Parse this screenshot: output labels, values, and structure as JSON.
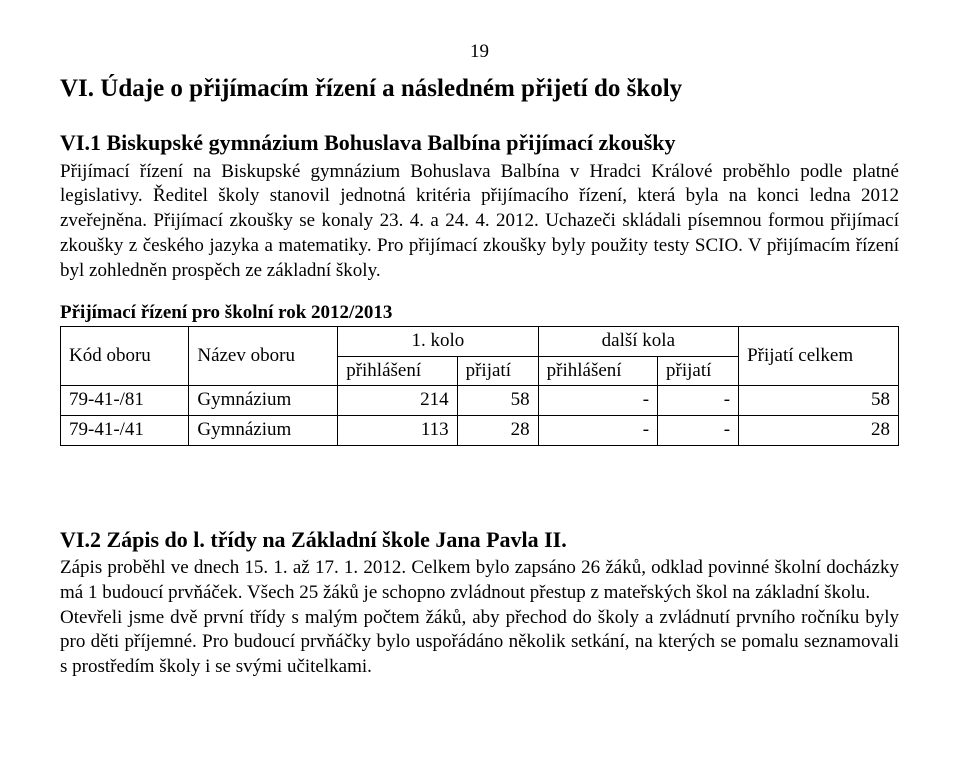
{
  "page_number": "19",
  "h1": "VI. Údaje o přijímacím řízení a následném přijetí do školy",
  "section1": {
    "heading": "VI.1 Biskupské gymnázium Bohuslava Balbína přijímací zkoušky",
    "para": "Přijímací řízení na Biskupské gymnázium Bohuslava Balbína v Hradci Králové proběhlo podle platné legislativy. Ředitel školy stanovil jednotná kritéria přijímacího řízení, která byla na konci ledna 2012 zveřejněna. Přijímací zkoušky se konaly 23. 4. a 24. 4. 2012. Uchazeči skládali písemnou formou přijímací zkoušky z českého jazyka a matematiky. Pro přijímací zkoušky byly použity testy SCIO. V přijímacím řízení byl zohledněn prospěch ze základní školy.",
    "table_caption": "Přijímací řízení pro školní rok 2012/2013",
    "table": {
      "header": {
        "kod": "Kód oboru",
        "nazev": "Název oboru",
        "kolo1": "1. kolo",
        "dalsi": "další kola",
        "prijati": "Přijatí celkem",
        "prihlaseni": "přihlášení",
        "prijati_sub": "přijatí"
      },
      "rows": [
        {
          "kod": "79-41-/81",
          "nazev": "Gymnázium",
          "k1_prih": "214",
          "k1_prij": "58",
          "dk_prih": "-",
          "dk_prij": "-",
          "celkem": "58"
        },
        {
          "kod": "79-41-/41",
          "nazev": "Gymnázium",
          "k1_prih": "113",
          "k1_prij": "28",
          "dk_prih": "-",
          "dk_prij": "-",
          "celkem": "28"
        }
      ]
    }
  },
  "section2": {
    "heading": "VI.2 Zápis do l. třídy na Základní škole Jana Pavla II.",
    "para1": "Zápis proběhl ve dnech 15. 1. až 17. 1. 2012. Celkem bylo zapsáno 26 žáků, odklad povinné školní docházky má 1 budoucí prvňáček. Všech 25 žáků je schopno zvládnout přestup z mateřských škol na základní školu.",
    "para2": "Otevřeli jsme dvě první třídy s malým počtem žáků, aby přechod do školy a zvládnutí prvního ročníku byly pro děti příjemné. Pro budoucí prvňáčky bylo uspořádáno několik setkání, na kterých se pomalu seznamovali s prostředím školy i se svými učitelkami."
  }
}
